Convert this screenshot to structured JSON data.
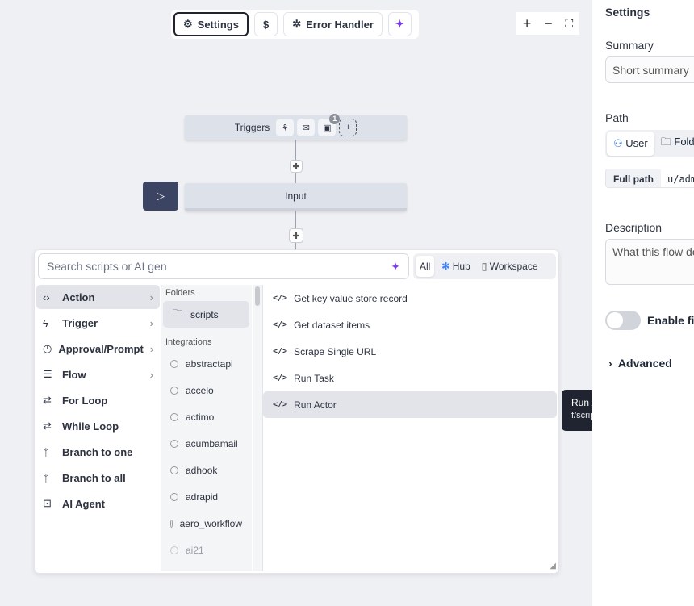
{
  "toolbar": {
    "settings": "Settings",
    "cost": "$",
    "error_handler": "Error Handler"
  },
  "zoom": {
    "in": "+",
    "out": "−",
    "fit": "⛶"
  },
  "graph": {
    "triggers_label": "Triggers",
    "trigger_badge": "1",
    "input_label": "Input"
  },
  "picker": {
    "search_placeholder": "Search scripts or AI gen",
    "filters": [
      "All",
      "Hub",
      "Workspace"
    ],
    "categories": [
      {
        "label": "Action",
        "icon": "code-icon",
        "chevron": true
      },
      {
        "label": "Trigger",
        "icon": "zap-icon",
        "chevron": true
      },
      {
        "label": "Approval/Prompt",
        "icon": "check-circle-icon",
        "chevron": true
      },
      {
        "label": "Flow",
        "icon": "menu-icon",
        "chevron": true
      },
      {
        "label": "For Loop",
        "icon": "repeat-icon"
      },
      {
        "label": "While Loop",
        "icon": "repeat-icon"
      },
      {
        "label": "Branch to one",
        "icon": "git-branch-icon"
      },
      {
        "label": "Branch to all",
        "icon": "git-branch-icon"
      },
      {
        "label": "AI Agent",
        "icon": "bot-icon"
      }
    ],
    "folders_header": "Folders",
    "folder": "scripts",
    "integrations_header": "Integrations",
    "integrations": [
      "abstractapi",
      "accelo",
      "actimo",
      "acumbamail",
      "adhook",
      "adrapid",
      "aero_workflow",
      "ai21"
    ],
    "scripts": [
      "Get key value store record",
      "Get dataset items",
      "Scrape Single URL",
      "Run Task",
      "Run Actor"
    ]
  },
  "tooltip": {
    "title": "Run Actor",
    "path": "f/scripts/run_actor"
  },
  "panel": {
    "title": "Settings",
    "summary_label": "Summary",
    "summary_placeholder": "Short summary",
    "path_label": "Path",
    "user_tab": "User",
    "folder_tab": "Folder",
    "full_path_label": "Full path",
    "full_path_value": "u/admin",
    "description_label": "Description",
    "description_placeholder": "What this flow does",
    "toggle_label": "Enable fixed inputs",
    "advanced": "Advanced"
  }
}
